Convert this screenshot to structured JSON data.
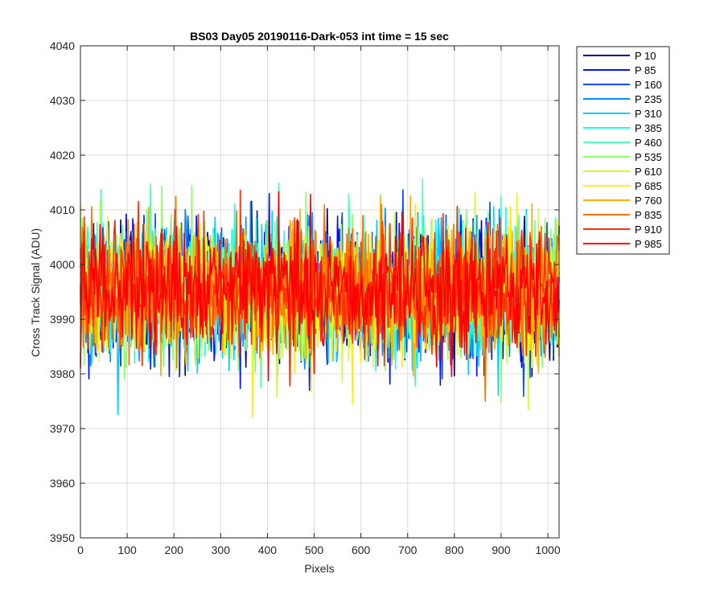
{
  "chart_data": {
    "type": "line",
    "title": "BS03 Day05 20190116-Dark-053 int time = 15 sec",
    "xlabel": "Pixels",
    "ylabel": "Cross Track Signal (ADU)",
    "xlim": [
      0,
      1024
    ],
    "ylim": [
      3950,
      4040
    ],
    "xticks": [
      0,
      100,
      200,
      300,
      400,
      500,
      600,
      700,
      800,
      900,
      1000
    ],
    "yticks": [
      3950,
      3960,
      3970,
      3980,
      3990,
      4000,
      4010,
      4020,
      4030,
      4040
    ],
    "grid": true,
    "legend_position": "outside-top-right",
    "noise_center": 3995,
    "noise_spread": 6,
    "series": [
      {
        "name": "P 10",
        "color": "#00008f"
      },
      {
        "name": "P 85",
        "color": "#0010ff"
      },
      {
        "name": "P 160",
        "color": "#0050ff"
      },
      {
        "name": "P 235",
        "color": "#008fff"
      },
      {
        "name": "P 310",
        "color": "#00cfff"
      },
      {
        "name": "P 385",
        "color": "#10ffef"
      },
      {
        "name": "P 460",
        "color": "#50ffaf"
      },
      {
        "name": "P 535",
        "color": "#8fff70"
      },
      {
        "name": "P 610",
        "color": "#cfff30"
      },
      {
        "name": "P 685",
        "color": "#ffef00"
      },
      {
        "name": "P 760",
        "color": "#ffaf00"
      },
      {
        "name": "P 835",
        "color": "#ff7000"
      },
      {
        "name": "P 910",
        "color": "#ff3000"
      },
      {
        "name": "P 985",
        "color": "#ff0000"
      }
    ]
  }
}
